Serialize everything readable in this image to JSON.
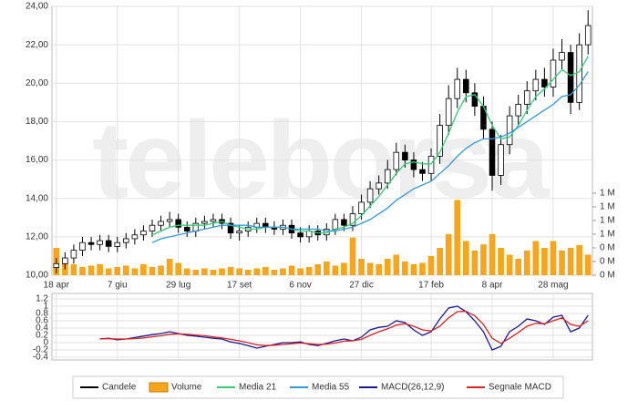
{
  "chart_data": [
    {
      "type": "candlestick",
      "name": "Candele",
      "color": "#000000",
      "watermark": "teleborsa",
      "categories": [
        "18 apr",
        null,
        null,
        null,
        null,
        null,
        null,
        "7 giu",
        null,
        null,
        null,
        null,
        null,
        null,
        "29 lug",
        null,
        null,
        null,
        null,
        null,
        null,
        "17 set",
        null,
        null,
        null,
        null,
        null,
        null,
        "6 nov",
        null,
        null,
        null,
        null,
        null,
        null,
        "27 dic",
        null,
        null,
        null,
        null,
        null,
        null,
        null,
        "17 feb",
        null,
        null,
        null,
        null,
        null,
        null,
        "8 apr",
        null,
        null,
        null,
        null,
        null,
        null,
        "28 mag",
        null,
        null,
        null,
        null
      ],
      "open": [
        10.4,
        10.6,
        10.9,
        11.3,
        11.7,
        11.6,
        11.8,
        11.5,
        11.7,
        11.9,
        12.1,
        12.3,
        12.6,
        12.8,
        12.9,
        12.5,
        12.3,
        12.7,
        12.8,
        12.9,
        12.7,
        12.2,
        12.3,
        12.5,
        12.7,
        12.5,
        12.4,
        12.6,
        12.2,
        12.0,
        12.3,
        12.1,
        12.4,
        12.9,
        12.6,
        13.2,
        13.8,
        14.5,
        14.8,
        15.5,
        16.4,
        16.0,
        15.5,
        15.3,
        16.2,
        17.8,
        19.2,
        20.2,
        19.5,
        18.8,
        17.6,
        15.2,
        16.8,
        18.3,
        18.9,
        19.6,
        20.2,
        19.8,
        21.2,
        21.6,
        19.0,
        22.0
      ],
      "high": [
        10.9,
        11.2,
        11.6,
        12.0,
        12.0,
        12.1,
        12.1,
        12.0,
        12.2,
        12.4,
        12.6,
        12.9,
        13.1,
        13.3,
        13.2,
        12.8,
        13.0,
        13.1,
        13.2,
        13.2,
        13.0,
        12.6,
        12.8,
        13.0,
        13.0,
        12.8,
        12.9,
        12.9,
        12.5,
        12.6,
        12.6,
        12.7,
        13.2,
        13.2,
        13.6,
        14.2,
        14.9,
        15.2,
        16.0,
        16.9,
        16.8,
        16.4,
        15.9,
        16.6,
        18.4,
        19.9,
        20.8,
        20.7,
        20.0,
        19.3,
        18.0,
        17.3,
        18.8,
        19.4,
        20.1,
        20.7,
        20.8,
        21.8,
        22.3,
        22.0,
        22.6,
        23.8
      ],
      "low": [
        10.1,
        10.3,
        10.6,
        11.0,
        11.3,
        11.3,
        11.2,
        11.2,
        11.4,
        11.6,
        11.8,
        12.0,
        12.3,
        12.5,
        12.2,
        12.0,
        12.0,
        12.4,
        12.5,
        12.4,
        11.9,
        11.8,
        12.0,
        12.2,
        12.2,
        12.1,
        12.1,
        11.9,
        11.7,
        11.7,
        11.8,
        11.8,
        12.1,
        12.3,
        12.3,
        12.9,
        13.5,
        14.2,
        14.5,
        15.2,
        15.6,
        15.1,
        14.9,
        14.9,
        15.8,
        17.3,
        18.7,
        19.0,
        18.3,
        17.1,
        14.4,
        14.7,
        16.3,
        17.8,
        18.4,
        19.1,
        19.3,
        19.3,
        20.7,
        18.4,
        18.6,
        21.5
      ],
      "close": [
        10.6,
        10.9,
        11.3,
        11.7,
        11.6,
        11.8,
        11.5,
        11.7,
        11.9,
        12.1,
        12.3,
        12.6,
        12.8,
        12.9,
        12.5,
        12.3,
        12.7,
        12.8,
        12.9,
        12.7,
        12.2,
        12.3,
        12.5,
        12.7,
        12.5,
        12.4,
        12.6,
        12.2,
        12.0,
        12.3,
        12.1,
        12.4,
        12.9,
        12.6,
        13.2,
        13.8,
        14.5,
        14.8,
        15.5,
        16.4,
        16.0,
        15.5,
        15.3,
        16.2,
        17.8,
        19.2,
        20.2,
        19.5,
        18.8,
        17.6,
        15.2,
        16.8,
        18.3,
        18.9,
        19.6,
        20.2,
        19.8,
        21.2,
        21.6,
        19.0,
        22.0,
        23.0
      ],
      "series": [
        {
          "name": "Volume",
          "type": "bar",
          "axis": "y2",
          "color": "#f7a51c",
          "values": [
            0.4,
            0.2,
            0.16,
            0.12,
            0.14,
            0.16,
            0.1,
            0.12,
            0.14,
            0.1,
            0.16,
            0.12,
            0.14,
            0.24,
            0.18,
            0.1,
            0.08,
            0.1,
            0.08,
            0.1,
            0.12,
            0.1,
            0.08,
            0.1,
            0.12,
            0.08,
            0.1,
            0.14,
            0.1,
            0.12,
            0.16,
            0.2,
            0.14,
            0.18,
            0.55,
            0.24,
            0.18,
            0.16,
            0.24,
            0.3,
            0.2,
            0.16,
            0.18,
            0.28,
            0.4,
            0.6,
            1.1,
            0.5,
            0.36,
            0.45,
            0.6,
            0.4,
            0.3,
            0.24,
            0.36,
            0.5,
            0.4,
            0.5,
            0.36,
            0.4,
            0.44,
            0.3
          ]
        },
        {
          "name": "Media 21",
          "type": "line",
          "color": "#33cc77",
          "values": [
            null,
            null,
            null,
            null,
            null,
            null,
            null,
            null,
            null,
            null,
            null,
            12.1,
            12.3,
            12.5,
            12.6,
            12.6,
            12.6,
            12.6,
            12.7,
            12.8,
            12.6,
            12.5,
            12.4,
            12.4,
            12.5,
            12.5,
            12.5,
            12.4,
            12.3,
            12.3,
            12.2,
            12.2,
            12.4,
            12.5,
            12.7,
            13.1,
            13.6,
            14.1,
            14.7,
            15.3,
            15.8,
            15.9,
            15.8,
            15.8,
            16.4,
            17.4,
            18.5,
            19.3,
            19.4,
            18.8,
            17.8,
            17.1,
            17.2,
            17.8,
            18.6,
            19.3,
            19.7,
            20.2,
            20.7,
            20.4,
            20.6,
            21.4
          ]
        },
        {
          "name": "Media 55",
          "type": "line",
          "color": "#3399dd",
          "values": [
            null,
            null,
            null,
            null,
            null,
            null,
            null,
            null,
            null,
            null,
            null,
            11.7,
            11.9,
            12.0,
            12.1,
            12.2,
            12.3,
            12.4,
            12.5,
            12.6,
            12.6,
            12.6,
            12.6,
            12.5,
            12.5,
            12.5,
            12.5,
            12.4,
            12.4,
            12.4,
            12.4,
            12.3,
            12.3,
            12.4,
            12.5,
            12.7,
            12.9,
            13.2,
            13.5,
            13.9,
            14.2,
            14.5,
            14.7,
            14.9,
            15.3,
            15.7,
            16.2,
            16.6,
            16.9,
            17.1,
            17.1,
            17.2,
            17.4,
            17.7,
            18.0,
            18.3,
            18.6,
            18.9,
            19.3,
            19.4,
            19.9,
            20.6
          ]
        }
      ],
      "ylim": [
        10,
        24
      ],
      "yticks": [
        {
          "value": 10,
          "label": "10,00"
        },
        {
          "value": 12,
          "label": "12,00"
        },
        {
          "value": 14,
          "label": "14,00"
        },
        {
          "value": 16,
          "label": "16,00"
        },
        {
          "value": 18,
          "label": "18,00"
        },
        {
          "value": 20,
          "label": "20,00"
        },
        {
          "value": 22,
          "label": "22,00"
        },
        {
          "value": 24,
          "label": "24,00"
        }
      ],
      "y2lim": [
        0,
        3.93
      ],
      "y2ticks": [
        {
          "value": 0,
          "label": "0 M"
        },
        {
          "value": 0.2,
          "label": "0 M"
        },
        {
          "value": 0.4,
          "label": "0 M"
        },
        {
          "value": 0.6,
          "label": "1 M"
        },
        {
          "value": 0.8,
          "label": "1 M"
        },
        {
          "value": 1.0,
          "label": "1 M"
        },
        {
          "value": 1.2,
          "label": "1 M"
        }
      ],
      "grid": true
    },
    {
      "type": "line",
      "series": [
        {
          "name": "MACD(26,12,9)",
          "color": "#1a1a99",
          "values": [
            null,
            null,
            null,
            null,
            null,
            0.1,
            0.12,
            0.08,
            0.1,
            0.14,
            0.18,
            0.22,
            0.25,
            0.3,
            0.25,
            0.2,
            0.18,
            0.15,
            0.12,
            0.1,
            0.02,
            -0.02,
            -0.08,
            -0.15,
            -0.1,
            -0.05,
            0.0,
            0.0,
            0.02,
            -0.05,
            -0.08,
            -0.02,
            0.05,
            0.1,
            0.05,
            0.15,
            0.35,
            0.42,
            0.45,
            0.6,
            0.55,
            0.35,
            0.2,
            0.3,
            0.65,
            0.95,
            1.0,
            0.85,
            0.6,
            0.3,
            -0.2,
            -0.1,
            0.3,
            0.45,
            0.65,
            0.6,
            0.5,
            0.7,
            0.75,
            0.3,
            0.4,
            0.75
          ]
        },
        {
          "name": "Segnale MACD",
          "color": "#dd2222",
          "values": [
            null,
            null,
            null,
            null,
            null,
            0.1,
            0.11,
            0.1,
            0.1,
            0.11,
            0.13,
            0.16,
            0.19,
            0.23,
            0.24,
            0.23,
            0.21,
            0.19,
            0.16,
            0.13,
            0.09,
            0.05,
            0.0,
            -0.06,
            -0.08,
            -0.07,
            -0.05,
            -0.03,
            -0.01,
            -0.03,
            -0.05,
            -0.04,
            -0.01,
            0.04,
            0.05,
            0.09,
            0.2,
            0.3,
            0.38,
            0.48,
            0.52,
            0.45,
            0.35,
            0.32,
            0.45,
            0.68,
            0.85,
            0.86,
            0.74,
            0.5,
            0.12,
            -0.02,
            0.12,
            0.28,
            0.45,
            0.53,
            0.52,
            0.6,
            0.68,
            0.5,
            0.45,
            0.6
          ]
        }
      ],
      "ylim": [
        -0.475,
        1.35
      ],
      "yticks": [
        1.2,
        1,
        0.8,
        0.6,
        0.4,
        0.2,
        0,
        -0.2,
        -0.4
      ],
      "grid": true
    }
  ]
}
